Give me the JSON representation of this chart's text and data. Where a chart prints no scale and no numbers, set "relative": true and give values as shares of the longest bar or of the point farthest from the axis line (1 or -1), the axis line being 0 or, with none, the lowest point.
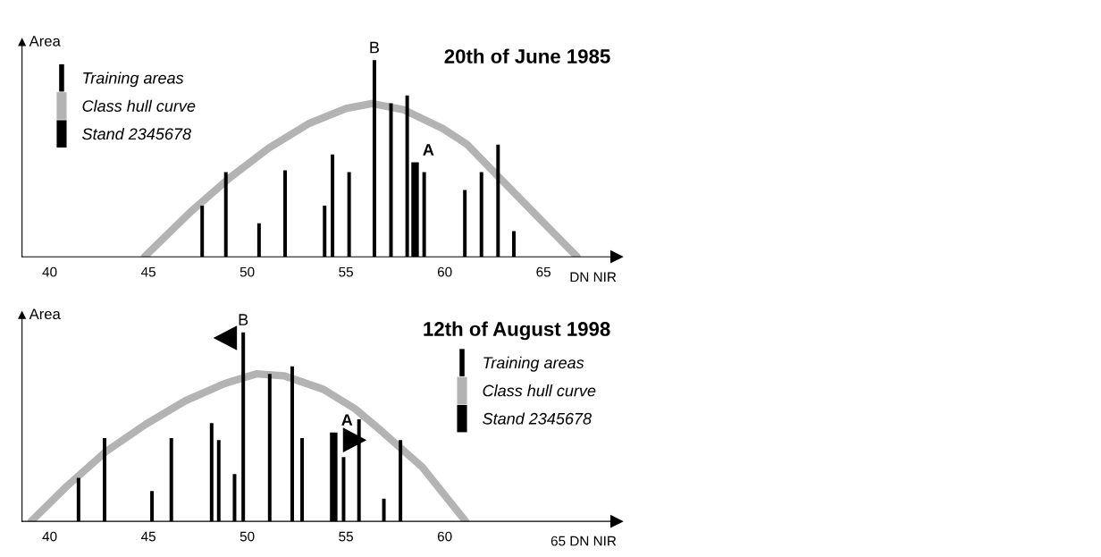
{
  "chart_data": [
    {
      "type": "bar",
      "title": "20th of June 1985",
      "xlabel": "DN NIR",
      "ylabel": "Area",
      "relative": true,
      "xlim": [
        38.6,
        68.7
      ],
      "xticks": [
        40,
        45,
        50,
        55,
        60,
        65
      ],
      "legend": "top left",
      "grid": false,
      "annotations": [
        {
          "text": "B",
          "x": 56.44,
          "y": 1.0
        },
        {
          "text": "A",
          "x": 58.5,
          "y": 0.48
        }
      ],
      "series": [
        {
          "name": "Training areas",
          "color": "#000000",
          "x": [
            47.72,
            48.92,
            50.6,
            51.92,
            53.92,
            54.32,
            55.16,
            56.44,
            57.28,
            58.1,
            58.96,
            61.02,
            61.86,
            62.7,
            63.5
          ],
          "values": [
            0.26,
            0.43,
            0.17,
            0.44,
            0.26,
            0.52,
            0.43,
            1.0,
            0.78,
            0.82,
            0.43,
            0.34,
            0.43,
            0.57,
            0.13
          ]
        },
        {
          "name": "Class hull curve",
          "type": "line",
          "color": "#b3b3b3",
          "x": [
            44.8,
            47.1,
            49.1,
            51.1,
            53.1,
            55.0,
            56.3,
            57.9,
            59.9,
            61.1,
            62.9,
            64.9,
            66.7
          ],
          "values": [
            0,
            0.225,
            0.4,
            0.553,
            0.676,
            0.754,
            0.779,
            0.748,
            0.652,
            0.574,
            0.389,
            0.184,
            0
          ]
        },
        {
          "name": "Stand 2345678",
          "color": "#000000",
          "x": [
            58.5
          ],
          "values": [
            0.48
          ]
        }
      ]
    },
    {
      "type": "bar",
      "title": "12th of August 1998",
      "xlabel": "65 DN NIR",
      "ylabel": "Area",
      "relative": true,
      "xlim": [
        38.6,
        68.7
      ],
      "xticks": [
        40,
        45,
        50,
        55,
        60
      ],
      "legend": "right",
      "grid": false,
      "annotations": [
        {
          "text": "B",
          "x": 49.8,
          "y": 1.0
        },
        {
          "text": "A",
          "x": 54.38,
          "y": 0.47
        }
      ],
      "series": [
        {
          "name": "Training areas",
          "color": "#000000",
          "x": [
            41.46,
            42.78,
            45.18,
            46.16,
            48.2,
            48.56,
            49.36,
            49.8,
            51.14,
            52.28,
            52.78,
            54.88,
            55.66,
            56.92,
            57.76
          ],
          "values": [
            0.23,
            0.44,
            0.16,
            0.44,
            0.52,
            0.43,
            0.25,
            1.0,
            0.78,
            0.82,
            0.44,
            0.34,
            0.54,
            0.12,
            0.43
          ]
        },
        {
          "name": "Class hull curve",
          "type": "line",
          "color": "#b3b3b3",
          "x": [
            39.06,
            40.86,
            42.86,
            44.86,
            46.86,
            48.86,
            50.46,
            51.86,
            53.86,
            55.46,
            56.86,
            58.86,
            61.06
          ],
          "values": [
            0,
            0.185,
            0.37,
            0.513,
            0.637,
            0.729,
            0.78,
            0.77,
            0.698,
            0.595,
            0.472,
            0.287,
            0
          ]
        },
        {
          "name": "Stand 2345678",
          "color": "#000000",
          "x": [
            54.38
          ],
          "values": [
            0.47
          ]
        }
      ]
    }
  ]
}
